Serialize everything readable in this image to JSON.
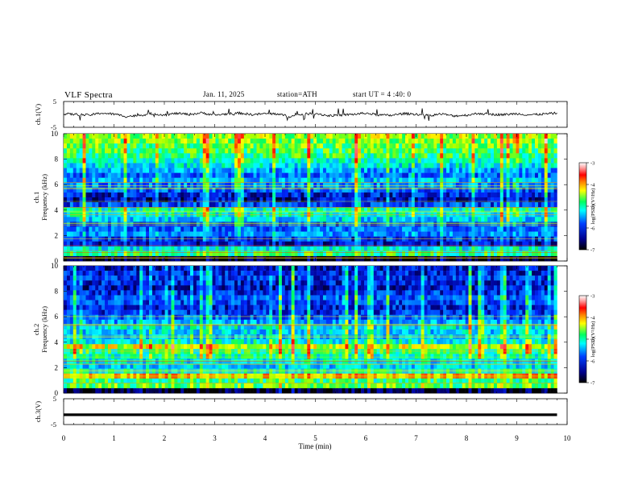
{
  "header": {
    "title": "VLF  Spectra",
    "date": "Jan. 11, 2025",
    "station": "station=ATH",
    "start": "start  UT  =   4 :40: 0"
  },
  "chart_data": [
    {
      "type": "line",
      "title": "",
      "ylabel": "ch.1(V)",
      "ylim": [
        -5,
        5
      ],
      "yticks": [
        "5",
        "-5"
      ],
      "x": [
        0,
        0.25,
        0.5,
        0.75,
        1.0,
        1.25,
        1.5,
        1.75,
        2.0,
        2.25,
        2.5,
        2.75,
        3.0,
        3.25,
        3.5,
        3.75,
        4.0,
        4.25,
        4.5,
        4.75,
        5.0,
        5.25,
        5.5,
        5.75,
        6.0,
        6.25,
        6.5,
        6.75,
        7.0,
        7.25,
        7.5,
        7.75,
        8.0,
        8.25,
        8.5,
        8.75,
        9.0,
        9.25,
        9.5,
        9.8
      ],
      "series": [
        {
          "values": [
            0.2,
            0.0,
            -0.3,
            0.5,
            0.1,
            -0.8,
            -0.4,
            0.3,
            -0.2,
            0.4,
            0.0,
            0.6,
            -0.3,
            0.2,
            0.5,
            -0.1,
            0.3,
            0.2,
            -0.9,
            0.1,
            0.4,
            -0.5,
            -0.3,
            0.0,
            0.5,
            -0.2,
            -0.4,
            0.3,
            0.1,
            -0.5,
            0.2,
            -0.6,
            -0.3,
            0.4,
            0.0,
            -0.1,
            0.3,
            -0.2,
            0.1,
            0.5
          ],
          "color": "#000000"
        }
      ]
    },
    {
      "type": "heatmap",
      "title": "",
      "ylabel_prefix": "ch.1",
      "ylabel": "Frequency  (kHz)",
      "xlim": [
        0,
        10
      ],
      "ylim": [
        0,
        10
      ],
      "yticks": [
        "0",
        "2",
        "4",
        "6",
        "8",
        "10"
      ],
      "colorbar": {
        "label": "log(PSD)(V²/Hz)",
        "range": [
          -7,
          -3
        ],
        "ticks": [
          "-3",
          "-4",
          "-5",
          "-6",
          "-7"
        ]
      },
      "data_end_min": 9.8,
      "column_note": "log10 PSD levels by frequency band",
      "levels": [
        -6.9,
        -5.0,
        -5.4,
        -6.4,
        -6.2,
        -5.8,
        -5.9,
        -6.0,
        -5.5,
        -5.3,
        -5.2,
        -6.1,
        -6.5,
        -6.3,
        -6.0,
        -5.8,
        -5.6,
        -5.9,
        -5.7,
        -5.4,
        -5.2,
        -5.0,
        -4.9,
        -4.8,
        -4.7,
        -4.6
      ]
    },
    {
      "type": "heatmap",
      "title": "",
      "ylabel_prefix": "ch.2",
      "ylabel": "Frequency  (kHz)",
      "xlim": [
        0,
        10
      ],
      "ylim": [
        0,
        10
      ],
      "yticks": [
        "0",
        "2",
        "4",
        "6",
        "8",
        "10"
      ],
      "colorbar": {
        "label": "log(PSD)(V²/Hz)",
        "range": [
          -7,
          -3
        ],
        "ticks": [
          "-3",
          "-4",
          "-5",
          "-6",
          "-7"
        ]
      },
      "data_end_min": 9.8,
      "column_note": "log10 PSD levels by frequency band",
      "levels": [
        -6.9,
        -4.8,
        -5.0,
        -4.2,
        -5.3,
        -5.5,
        -5.4,
        -5.2,
        -5.0,
        -4.5,
        -5.3,
        -5.6,
        -5.5,
        -5.4,
        -5.7,
        -6.0,
        -6.2,
        -6.3,
        -6.1,
        -6.0,
        -6.2,
        -6.4,
        -6.3,
        -6.2,
        -6.3,
        -6.4
      ]
    },
    {
      "type": "line",
      "title": "",
      "ylabel": "ch.3(V)",
      "ylim": [
        -5,
        5
      ],
      "yticks": [
        "5",
        "-5"
      ],
      "x": [
        0,
        9.8
      ],
      "series": [
        {
          "values": [
            -1.2,
            -1.2
          ],
          "color": "#000000"
        }
      ]
    }
  ],
  "xaxis": {
    "label": "Time  (min)",
    "ticks": [
      "0",
      "1",
      "2",
      "3",
      "4",
      "5",
      "6",
      "7",
      "8",
      "9",
      "10"
    ]
  },
  "colors": {
    "colormap": [
      "#000000",
      "#1a1a8c",
      "#0000ff",
      "#0080ff",
      "#00ffff",
      "#00ff80",
      "#80ff00",
      "#ffff00",
      "#ff8000",
      "#ff0000",
      "#ff9999",
      "#ffffff"
    ]
  }
}
